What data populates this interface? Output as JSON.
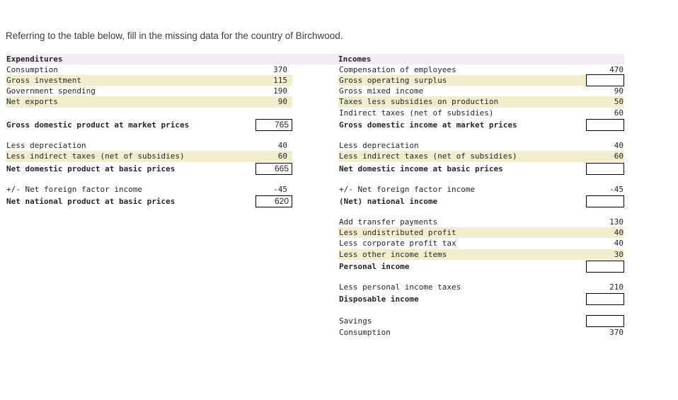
{
  "title": "Referring to the table below, fill in the missing data for the country of Birchwood.",
  "table": {
    "header": {
      "left": "Expenditures",
      "right": "Incomes"
    },
    "colors": {
      "header_bg": "#f2edf3",
      "stripe_bg": "#f2eecd",
      "box_border": "#000000",
      "text": "#262626",
      "title_text": "#3d3d3d"
    },
    "left_rows": [
      {
        "type": "data",
        "label": "Consumption",
        "value": "370"
      },
      {
        "type": "data",
        "label": "Gross investment",
        "value": "115",
        "stripe": true
      },
      {
        "type": "data",
        "label": "Government spending",
        "value": "190"
      },
      {
        "type": "data",
        "label": "Net exports",
        "value": "90",
        "stripe": true
      },
      {
        "type": "spacer"
      },
      {
        "type": "total",
        "label": "Gross domestic product at market prices",
        "box_value": "765"
      },
      {
        "type": "gap"
      },
      {
        "type": "data",
        "label": "Less depreciation",
        "value": "40"
      },
      {
        "type": "data",
        "label": "Less indirect taxes (net of subsidies)",
        "value": "60",
        "stripe": true
      },
      {
        "type": "total",
        "label": "Net domestic product at basic prices",
        "box_value": "665"
      },
      {
        "type": "gap"
      },
      {
        "type": "data",
        "label": "+/- Net foreign factor income",
        "value": "-45"
      },
      {
        "type": "total",
        "label": "Net national product at basic prices",
        "box_value": "620"
      }
    ],
    "right_rows": [
      {
        "type": "data",
        "label": "Compensation of employees",
        "value": "470"
      },
      {
        "type": "data",
        "label": "Gross operating surplus",
        "box_value": "",
        "stripe": true
      },
      {
        "type": "data",
        "label": "Gross mixed income",
        "value": "90"
      },
      {
        "type": "data",
        "label": "Taxes less subsidies on production",
        "value": "50",
        "stripe": true
      },
      {
        "type": "data",
        "label": "Indirect taxes (net of subsidies)",
        "value": "60"
      },
      {
        "type": "total",
        "label": "Gross domestic income at market prices",
        "box_value": ""
      },
      {
        "type": "gap"
      },
      {
        "type": "data",
        "label": "Less depreciation",
        "value": "40"
      },
      {
        "type": "data",
        "label": "Less indirect taxes (net of subsidies)",
        "value": "60",
        "stripe": true
      },
      {
        "type": "total",
        "label": "Net domestic income at basic prices",
        "box_value": ""
      },
      {
        "type": "gap"
      },
      {
        "type": "data",
        "label": "+/- Net foreign factor income",
        "value": "-45"
      },
      {
        "type": "total",
        "label": "(Net) national income",
        "box_value": ""
      },
      {
        "type": "gap"
      },
      {
        "type": "data",
        "label": "Add transfer payments",
        "value": "130"
      },
      {
        "type": "data",
        "label": "Less undistributed profit",
        "value": "40",
        "stripe": true
      },
      {
        "type": "data",
        "label": "Less corporate profit tax",
        "value": "40"
      },
      {
        "type": "data",
        "label": "Less other income items",
        "value": "30",
        "stripe": true
      },
      {
        "type": "total",
        "label": "Personal income",
        "box_value": ""
      },
      {
        "type": "gap"
      },
      {
        "type": "data",
        "label": "Less personal income taxes",
        "value": "210"
      },
      {
        "type": "total",
        "label": "Disposable income",
        "box_value": ""
      },
      {
        "type": "gap"
      },
      {
        "type": "total",
        "label": "Savings",
        "box_value": "",
        "bold": false
      },
      {
        "type": "data",
        "label": "Consumption",
        "value": "370"
      }
    ]
  }
}
